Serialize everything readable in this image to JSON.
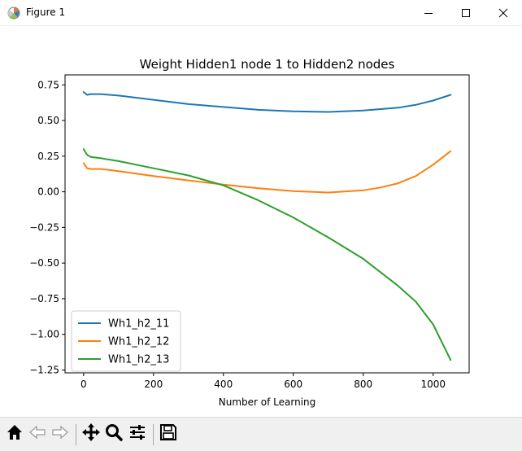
{
  "window": {
    "title": "Figure 1",
    "icon": "matplotlib-icon",
    "controls": [
      "minimize-icon",
      "maximize-icon",
      "close-icon"
    ]
  },
  "toolbar": {
    "buttons": [
      "home-icon",
      "back-icon",
      "forward-icon",
      "pan-icon",
      "zoom-icon",
      "configure-subplots-icon",
      "save-icon"
    ]
  },
  "chart_data": {
    "type": "line",
    "title": "Weight Hidden1 node 1 to Hidden2 nodes",
    "xlabel": "Number of Learning",
    "ylabel": "",
    "xlim": [
      -53,
      1103
    ],
    "ylim": [
      -1.27,
      0.82
    ],
    "xticks": [
      0,
      200,
      400,
      600,
      800,
      1000
    ],
    "xtick_labels": [
      "0",
      "200",
      "400",
      "600",
      "800",
      "1000"
    ],
    "yticks": [
      0.75,
      0.5,
      0.25,
      0.0,
      -0.25,
      -0.5,
      -0.75,
      -1.0,
      -1.25
    ],
    "ytick_labels": [
      "0.75",
      "0.50",
      "0.25",
      "0.00",
      "−0.25",
      "−0.50",
      "−0.75",
      "−1.00",
      "−1.25"
    ],
    "grid": false,
    "legend_position": "lower-left",
    "series": [
      {
        "name": "Wh1_h2_11",
        "color": "#1f77b4",
        "x": [
          0,
          10,
          20,
          50,
          100,
          200,
          300,
          400,
          500,
          600,
          700,
          800,
          900,
          950,
          1000,
          1050
        ],
        "values": [
          0.7,
          0.68,
          0.685,
          0.685,
          0.675,
          0.645,
          0.615,
          0.595,
          0.575,
          0.565,
          0.56,
          0.57,
          0.59,
          0.61,
          0.64,
          0.68
        ]
      },
      {
        "name": "Wh1_h2_12",
        "color": "#ff7f0e",
        "x": [
          0,
          10,
          20,
          50,
          100,
          200,
          300,
          400,
          500,
          600,
          700,
          800,
          850,
          900,
          950,
          1000,
          1050
        ],
        "values": [
          0.2,
          0.165,
          0.16,
          0.16,
          0.145,
          0.11,
          0.08,
          0.05,
          0.025,
          0.005,
          -0.005,
          0.01,
          0.03,
          0.06,
          0.11,
          0.19,
          0.285
        ]
      },
      {
        "name": "Wh1_h2_13",
        "color": "#2ca02c",
        "x": [
          0,
          10,
          20,
          50,
          100,
          200,
          300,
          400,
          500,
          600,
          700,
          800,
          900,
          950,
          1000,
          1050
        ],
        "values": [
          0.3,
          0.26,
          0.245,
          0.235,
          0.215,
          0.165,
          0.115,
          0.045,
          -0.06,
          -0.18,
          -0.32,
          -0.47,
          -0.66,
          -0.77,
          -0.93,
          -1.18
        ]
      }
    ]
  }
}
